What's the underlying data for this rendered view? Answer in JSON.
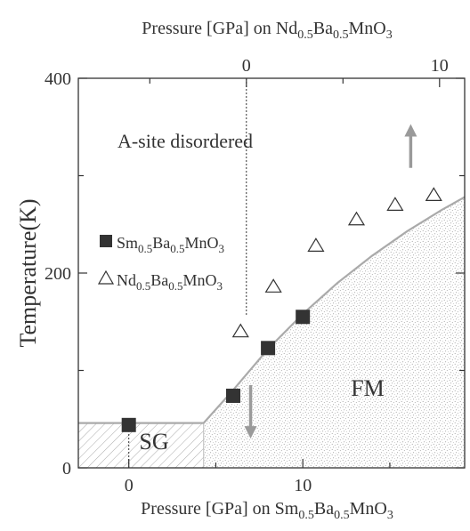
{
  "chart_data": {
    "type": "scatter",
    "title": "",
    "top_axis": {
      "label_parts": [
        {
          "t": "Pressure [GPa] on Nd"
        },
        {
          "t": "0.5",
          "sub": true
        },
        {
          "t": "Ba"
        },
        {
          "t": "0.5",
          "sub": true
        },
        {
          "t": "MnO"
        },
        {
          "t": "3",
          "sub": true
        }
      ],
      "ticks": [
        0,
        10
      ],
      "tick_labels": [
        "0",
        "10"
      ],
      "xlim": [
        -8.7,
        11.3
      ]
    },
    "bottom_axis": {
      "label_parts": [
        {
          "t": "Pressure [GPa] on Sm"
        },
        {
          "t": "0.5",
          "sub": true
        },
        {
          "t": "Ba"
        },
        {
          "t": "0.5",
          "sub": true
        },
        {
          "t": "MnO"
        },
        {
          "t": "3",
          "sub": true
        }
      ],
      "ticks": [
        0,
        10
      ],
      "tick_labels": [
        "0",
        "10"
      ],
      "xlim": [
        -2.9,
        19.3
      ]
    },
    "ylabel": "Temperature(K)",
    "ylim": [
      0,
      400
    ],
    "yticks": [
      0,
      200,
      400
    ],
    "ytick_labels": [
      "0",
      "200",
      "400"
    ],
    "series": [
      {
        "name_parts": [
          {
            "t": "Sm"
          },
          {
            "t": "0.5",
            "sub": true
          },
          {
            "t": "Ba"
          },
          {
            "t": "0.5",
            "sub": true
          },
          {
            "t": "MnO"
          },
          {
            "t": "3",
            "sub": true
          }
        ],
        "axis": "bottom",
        "marker": "filled-square",
        "x": [
          0,
          6,
          8,
          10
        ],
        "y": [
          44,
          74,
          123,
          155
        ]
      },
      {
        "name_parts": [
          {
            "t": "Nd"
          },
          {
            "t": "0.5",
            "sub": true
          },
          {
            "t": "Ba"
          },
          {
            "t": "0.5",
            "sub": true
          },
          {
            "t": "MnO"
          },
          {
            "t": "3",
            "sub": true
          }
        ],
        "axis": "top",
        "marker": "open-triangle",
        "x": [
          -0.3,
          1.4,
          3.6,
          5.7,
          7.7,
          9.7
        ],
        "y": [
          140,
          186,
          228,
          255,
          270,
          280
        ]
      }
    ],
    "boundary": {
      "axis": "bottom",
      "x": [
        -2.9,
        4.3,
        6.0,
        8.0,
        10.0,
        12.0,
        14.0,
        16.0,
        18.0,
        19.3
      ],
      "y": [
        46,
        46,
        80,
        122,
        158,
        190,
        218,
        243,
        265,
        278
      ]
    },
    "regions": [
      {
        "label": "A-site disordered",
        "style": "plain"
      },
      {
        "label": "FM",
        "style": "stippled"
      },
      {
        "label": "SG",
        "style": "hatched"
      }
    ],
    "reference_lines": [
      {
        "axis": "top",
        "x": 0,
        "style": "dotted"
      },
      {
        "axis": "bottom",
        "x": 0,
        "style": "dotted",
        "y_to": 44
      }
    ],
    "arrows": [
      {
        "axis": "bottom",
        "x": 16.2,
        "y_from": 308,
        "y_to": 353,
        "direction": "up"
      },
      {
        "axis": "bottom",
        "x": 7.0,
        "y_from": 85,
        "y_to": 30,
        "direction": "down"
      }
    ],
    "colors": {
      "square": "#333333",
      "triangle": "#333333",
      "boundary": "#aaaaaa",
      "arrow": "#9a9a9a",
      "stipple": "#9a9a9a",
      "hatch": "#aaaaaa"
    },
    "grid": false,
    "legend": "left"
  }
}
